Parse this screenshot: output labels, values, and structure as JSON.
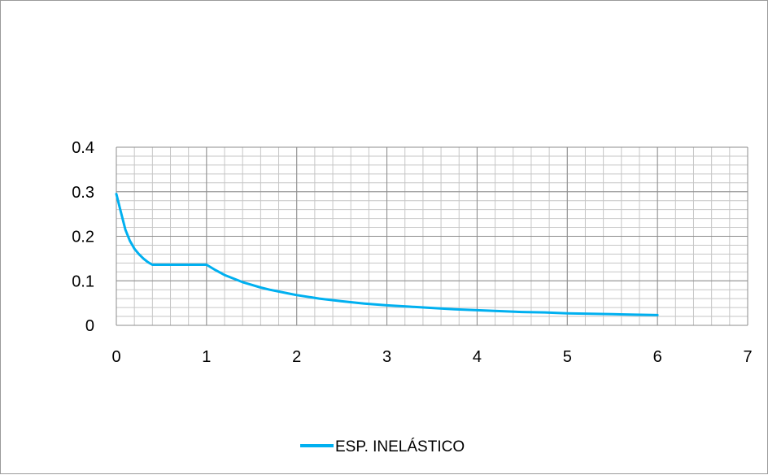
{
  "chart_data": {
    "type": "line",
    "title": "",
    "xlabel": "",
    "ylabel": "",
    "xlim": [
      0,
      7
    ],
    "ylim": [
      0,
      0.4
    ],
    "x_ticks": [
      "0",
      "1",
      "2",
      "3",
      "4",
      "5",
      "6",
      "7"
    ],
    "y_ticks": [
      "0",
      "0.1",
      "0.2",
      "0.3",
      "0.4"
    ],
    "x_minor_step": 0.2,
    "y_minor_step": 0.02,
    "grid": true,
    "legend_position": "bottom",
    "series": [
      {
        "name": "ESP. INELÁSTICO",
        "color": "#00b0f0",
        "points": [
          [
            0,
            0.295
          ],
          [
            0.05,
            0.255
          ],
          [
            0.1,
            0.215
          ],
          [
            0.15,
            0.19
          ],
          [
            0.2,
            0.172
          ],
          [
            0.25,
            0.16
          ],
          [
            0.3,
            0.15
          ],
          [
            0.35,
            0.142
          ],
          [
            0.4,
            0.136
          ],
          [
            0.5,
            0.136
          ],
          [
            0.6,
            0.136
          ],
          [
            0.7,
            0.136
          ],
          [
            0.8,
            0.136
          ],
          [
            0.9,
            0.136
          ],
          [
            1.0,
            0.136
          ],
          [
            1.1,
            0.124
          ],
          [
            1.2,
            0.113
          ],
          [
            1.3,
            0.105
          ],
          [
            1.4,
            0.097
          ],
          [
            1.5,
            0.091
          ],
          [
            1.6,
            0.085
          ],
          [
            1.7,
            0.08
          ],
          [
            1.8,
            0.076
          ],
          [
            1.9,
            0.072
          ],
          [
            2.0,
            0.068
          ],
          [
            2.25,
            0.06
          ],
          [
            2.5,
            0.054
          ],
          [
            2.75,
            0.049
          ],
          [
            3.0,
            0.045
          ],
          [
            3.25,
            0.042
          ],
          [
            3.5,
            0.039
          ],
          [
            3.75,
            0.036
          ],
          [
            4.0,
            0.034
          ],
          [
            4.25,
            0.032
          ],
          [
            4.5,
            0.03
          ],
          [
            4.75,
            0.029
          ],
          [
            5.0,
            0.027
          ],
          [
            5.25,
            0.026
          ],
          [
            5.5,
            0.025
          ],
          [
            5.75,
            0.024
          ],
          [
            6.0,
            0.023
          ]
        ]
      }
    ]
  }
}
